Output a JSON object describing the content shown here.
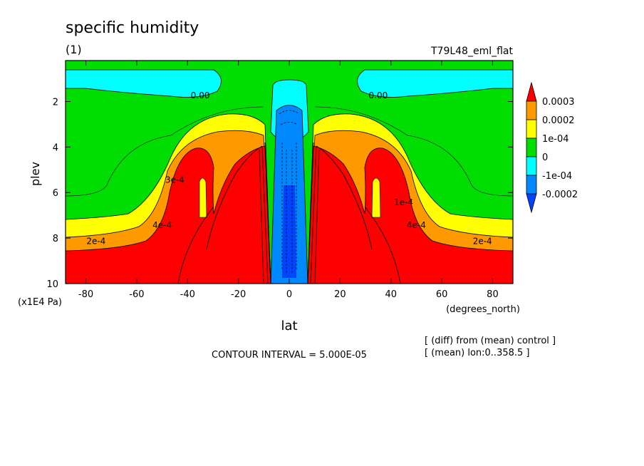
{
  "chart_data": {
    "type": "heatmap",
    "title": "specific humidity",
    "subtitle": "(1)",
    "run_label": "T79L48_eml_flat",
    "xlabel": "lat",
    "x_units": "(degrees_north)",
    "ylabel": "plev",
    "y_units": "(x1E4 Pa)",
    "xlim": [
      -88,
      88
    ],
    "ylim": [
      10,
      0.2
    ],
    "x_ticks": [
      -80,
      -60,
      -40,
      -20,
      0,
      20,
      40,
      60,
      80
    ],
    "x_tick_labels": [
      "-80",
      "-60",
      "-40",
      "-20",
      "0",
      "20",
      "40",
      "60",
      "80"
    ],
    "y_ticks": [
      2,
      4,
      6,
      8,
      10
    ],
    "y_tick_labels": [
      "2",
      "4",
      "6",
      "8",
      "10"
    ],
    "contour_interval_text": "CONTOUR INTERVAL = 5.000E-05",
    "notes": [
      "[ (diff) from (mean) control ]",
      "[ (mean) lon:0..358.5 ]"
    ],
    "colorbar": {
      "labels": [
        "0.0003",
        "0.0002",
        "1e-04",
        "0",
        "-1e-04",
        "-0.0002"
      ],
      "colors": [
        "#ff0000",
        "#ff9900",
        "#ffff00",
        "#00dd00",
        "#00ffff",
        "#0088ff",
        "#0044ff"
      ]
    },
    "contour_labels": [
      {
        "text": "0.00",
        "lat": -35,
        "plev": 1.8
      },
      {
        "text": "0.00",
        "lat": 35,
        "plev": 1.8
      },
      {
        "text": "2e-4",
        "lat": -76,
        "plev": 8.2
      },
      {
        "text": "2e-4",
        "lat": 76,
        "plev": 8.2
      },
      {
        "text": "4e-4",
        "lat": -50,
        "plev": 7.5
      },
      {
        "text": "4e-4",
        "lat": 50,
        "plev": 7.5
      },
      {
        "text": "3e-4",
        "lat": -45,
        "plev": 5.5
      },
      {
        "text": "1e-4",
        "lat": 45,
        "plev": 6.5
      }
    ]
  }
}
